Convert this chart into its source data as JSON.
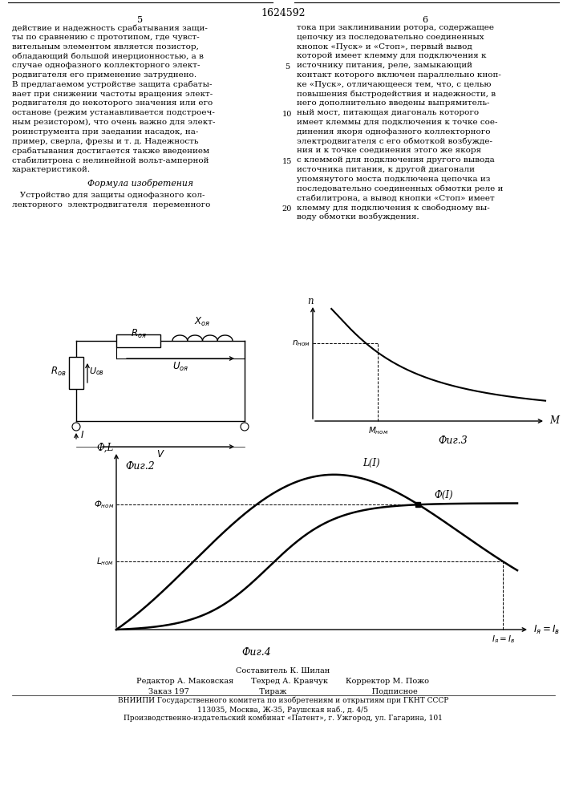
{
  "page_title": "1624592",
  "col_left_num": "5",
  "col_right_num": "6",
  "left_text_lines": [
    "действие и надежность срабатывания защи-",
    "ты по сравнению с прототипом, где чувст-",
    "вительным элементом является позистор,",
    "обладающий большой инерционностью, а в",
    "случае однофазного коллекторного элект-",
    "родвигателя его применение затруднено.",
    "В предлагаемом устройстве защита срабаты-",
    "вает при снижении частоты вращения элект-",
    "родвигателя до некоторого значения или его",
    "останове (режим устанавливается подстроеч-",
    "ным резистором), что очень важно для элект-",
    "роинструмента при заедании насадок, на-",
    "пример, сверла, фрезы и т. д. Надежность",
    "срабатывания достигается также введением",
    "стабилитрона с нелинейной вольт-амперной",
    "характеристикой."
  ],
  "formula_header": "Формула изобретения",
  "formula_text_lines": [
    "   Устройство для защиты однофазного кол-",
    "лекторного  электродвигателя  переменного"
  ],
  "right_text_lines": [
    "тока при заклинивании ротора, содержащее",
    "цепочку из последовательно соединенных",
    "кнопок «Пуск» и «Стоп», первый вывод",
    "которой имеет клемму для подключения к",
    "источнику питания, реле, замыкающий",
    "контакт которого включен параллельно кноп-",
    "ке «Пуск», отличающееся тем, что, с целью",
    "повышения быстродействия и надежности, в",
    "него дополнительно введены выпрямитель-",
    "ный мост, питающая диагональ которого",
    "имеет клеммы для подключения к точке сое-",
    "динения якоря однофазного коллекторного",
    "электродвигателя с его обмоткой возбужде-",
    "ния и к точке соединения этого же якоря",
    "с клеммой для подключения другого вывода",
    "источника питания, к другой диагонали",
    "упомянутого моста подключена цепочка из",
    "последовательно соединенных обмотки реле и",
    "стабилитрона, а вывод кнопки «Стоп» имеет",
    "клемму для подключения к свободному вы-",
    "воду обмотки возбуждения."
  ],
  "fig2_label": "Фиг.2",
  "fig3_label": "Фиг.3",
  "fig4_label": "Фиг.4",
  "bottom_text_center": "Составитель К. Шилан",
  "bottom_text_row2": "Редактор А. Маковская       Техред А. Кравчук       Корректор М. Пожо",
  "bottom_text_row3": "Заказ 197                            Тираж                                  Подписное",
  "bottom_text_vniipи": "ВНИИПИ Государственного комитета по изобретениям и открытиям при ГКНТ СССР",
  "bottom_text_addr1": "113035, Москва, Ж-35, Раушская наб., д. 4/5",
  "bottom_text_addr2": "Производственно-издательский комбинат «Патент», г. Ужгород, ул. Гагарина, 101"
}
